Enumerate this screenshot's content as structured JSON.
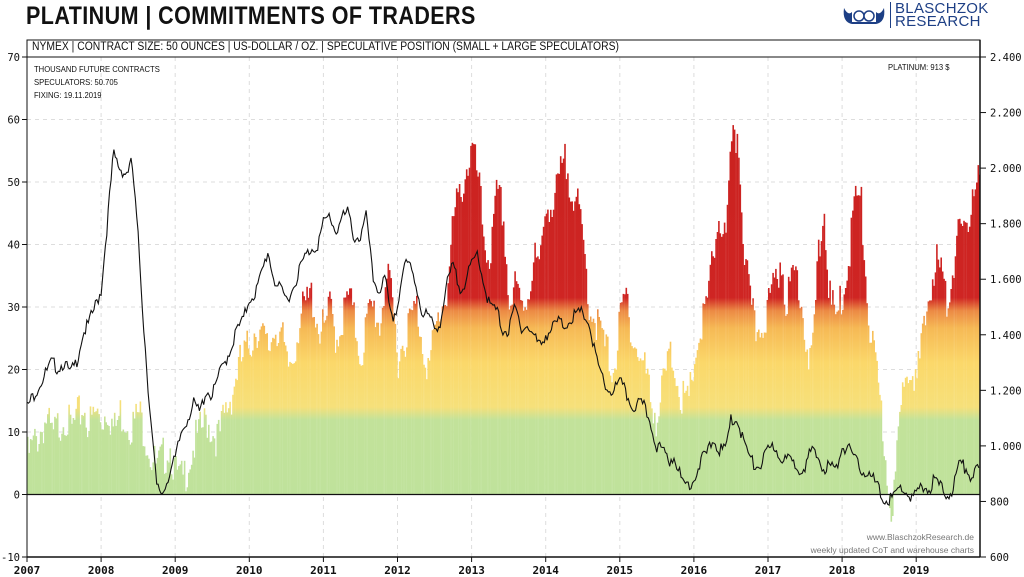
{
  "header": {
    "title": "PLATINUM | COMMITMENTS OF TRADERS",
    "subtitle": "NYMEX | CONTRACT SIZE: 50 OUNCES | US-DOLLAR / OZ. | SPECULATIVE POSITION (SMALL + LARGE SPECULATORS)",
    "logo_line1": "BLASCHZOK",
    "logo_line2": "RESEARCH"
  },
  "info": {
    "units": "THOUSAND FUTURE CONTRACTS",
    "speculators": "SPECULATORS: 50.705",
    "fixing": "FIXING: 19.11.2019",
    "platinum": "PLATINUM: 913 $"
  },
  "watermark": {
    "line1": "www.BlaschzokResearch.de",
    "line2": "weekly updated CoT and warehouse charts"
  },
  "chart_data": {
    "type": "bar",
    "title": "PLATINUM | COMMITMENTS OF TRADERS",
    "ylabel": "Thousand future contracts",
    "y2label": "US-Dollar / oz.",
    "ylim": [
      -10,
      70
    ],
    "y2lim": [
      600,
      2400
    ],
    "yticks": [
      "-10",
      "0",
      "10",
      "20",
      "30",
      "40",
      "50",
      "60",
      "70"
    ],
    "y2ticks": [
      "600",
      "800",
      "1.000",
      "1.200",
      "1.400",
      "1.600",
      "1.800",
      "2.000",
      "2.200",
      "2.400"
    ],
    "xticks": [
      "2007",
      "2008",
      "2009",
      "2010",
      "2011",
      "2012",
      "2013",
      "2014",
      "2015",
      "2016",
      "2017",
      "2018",
      "2019"
    ],
    "x_start": "2007-01",
    "x_end": "2019-11",
    "resolution": "monthly (approx.)",
    "colors": {
      "green": "#bfe29b",
      "yellow": "#fbd86a",
      "orange": "#f2a04a",
      "red": "#cf2523",
      "price": "#111111"
    },
    "series": [
      {
        "name": "Speculators (thousand contracts)",
        "type": "bar",
        "values": [
          6,
          8,
          10,
          12,
          9,
          11,
          13,
          10,
          12,
          14,
          11,
          13,
          12,
          14,
          10,
          13,
          12,
          11,
          13,
          10,
          6,
          4,
          6,
          8,
          3,
          2,
          5,
          8,
          10,
          12,
          10,
          9,
          13,
          16,
          20,
          22,
          24,
          27,
          25,
          23,
          27,
          26,
          20,
          22,
          28,
          30,
          32,
          27,
          26,
          30,
          25,
          28,
          32,
          27,
          22,
          28,
          30,
          27,
          35,
          31,
          22,
          25,
          28,
          30,
          24,
          20,
          26,
          30,
          33,
          44,
          48,
          52,
          55,
          50,
          40,
          38,
          48,
          45,
          30,
          33,
          30,
          32,
          38,
          36,
          48,
          45,
          50,
          53,
          50,
          46,
          40,
          30,
          28,
          25,
          22,
          20,
          28,
          32,
          25,
          22,
          20,
          15,
          12,
          18,
          22,
          20,
          15,
          14,
          22,
          26,
          30,
          38,
          45,
          40,
          55,
          58,
          40,
          30,
          26,
          28,
          30,
          34,
          38,
          30,
          36,
          34,
          25,
          20,
          38,
          45,
          30,
          28,
          32,
          38,
          48,
          46,
          30,
          22,
          15,
          5,
          -3,
          8,
          20,
          22,
          18,
          25,
          32,
          38,
          35,
          30,
          38,
          42,
          40,
          50,
          50.7
        ]
      },
      {
        "name": "Platinum price (USD/oz)",
        "type": "line",
        "axis": "right",
        "values": [
          1140,
          1180,
          1220,
          1260,
          1300,
          1280,
          1300,
          1260,
          1300,
          1400,
          1440,
          1500,
          1560,
          1800,
          2050,
          2000,
          1980,
          2020,
          1750,
          1400,
          1100,
          850,
          830,
          900,
          950,
          1050,
          1100,
          1150,
          1120,
          1200,
          1180,
          1250,
          1300,
          1350,
          1420,
          1450,
          1530,
          1550,
          1620,
          1700,
          1600,
          1560,
          1530,
          1560,
          1630,
          1680,
          1710,
          1720,
          1800,
          1830,
          1770,
          1820,
          1840,
          1750,
          1750,
          1830,
          1600,
          1560,
          1600,
          1450,
          1500,
          1650,
          1650,
          1580,
          1480,
          1470,
          1420,
          1450,
          1580,
          1650,
          1570,
          1590,
          1650,
          1700,
          1580,
          1500,
          1490,
          1420,
          1410,
          1500,
          1430,
          1430,
          1400,
          1360,
          1400,
          1420,
          1450,
          1430,
          1460,
          1470,
          1480,
          1440,
          1330,
          1250,
          1200,
          1200,
          1230,
          1190,
          1140,
          1150,
          1140,
          1080,
          1000,
          980,
          950,
          960,
          870,
          860,
          880,
          940,
          970,
          1020,
          990,
          980,
          1090,
          1100,
          1020,
          960,
          920,
          940,
          980,
          1000,
          960,
          950,
          940,
          920,
          930,
          980,
          960,
          920,
          930,
          910,
          1000,
          990,
          950,
          920,
          900,
          880,
          840,
          800,
          810,
          840,
          850,
          810,
          820,
          860,
          840,
          880,
          850,
          820,
          850,
          940,
          920,
          890,
          913
        ]
      }
    ],
    "grid": true,
    "legend": "none"
  }
}
